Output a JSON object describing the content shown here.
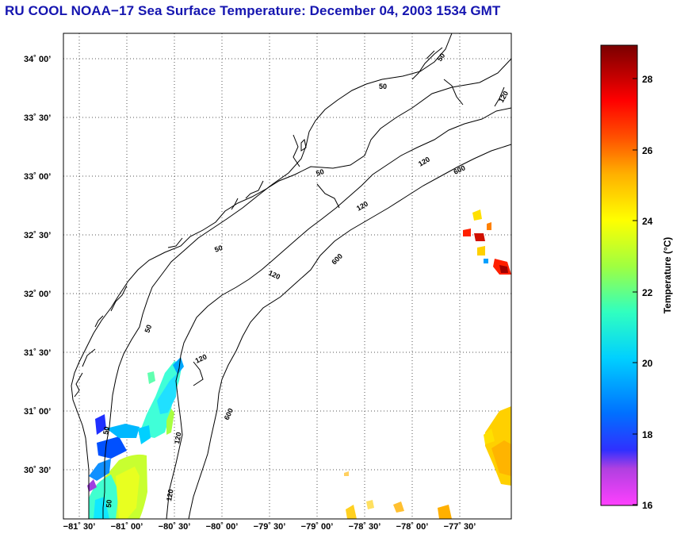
{
  "title": "RU COOL  NOAA−17  Sea Surface Temperature:  December 04, 2003 1534 GMT",
  "map": {
    "x_ticks": [
      "−81˚ 30’",
      "−81˚ 00’",
      "−80˚ 30’",
      "−80˚ 00’",
      "−79˚ 30’",
      "−79˚ 00’",
      "−78˚ 30’",
      "−78˚ 00’",
      "−77˚ 30’"
    ],
    "y_ticks": [
      "34˚ 00’",
      "33˚ 30’",
      "33˚ 00’",
      "32˚ 30’",
      "32˚ 00’",
      "31˚ 30’",
      "31˚ 00’",
      "30˚ 30’"
    ],
    "contour_labels": {
      "c50": "50",
      "c120": "120",
      "c600": "600"
    },
    "colors": {
      "coast": "#000000",
      "grid": "#555555",
      "frame": "#000000"
    }
  },
  "colorbar": {
    "label": "Temperature (°C)",
    "ticks": [
      "16",
      "18",
      "20",
      "22",
      "24",
      "26",
      "28"
    ],
    "range": [
      16,
      29
    ],
    "colormap": [
      "#ff40ff",
      "#b040e0",
      "#3030ff",
      "#0070ff",
      "#00d0ff",
      "#30ffc0",
      "#a0ff40",
      "#ffff00",
      "#ffb000",
      "#ff5000",
      "#ff0000",
      "#b00000",
      "#7a0000"
    ]
  }
}
